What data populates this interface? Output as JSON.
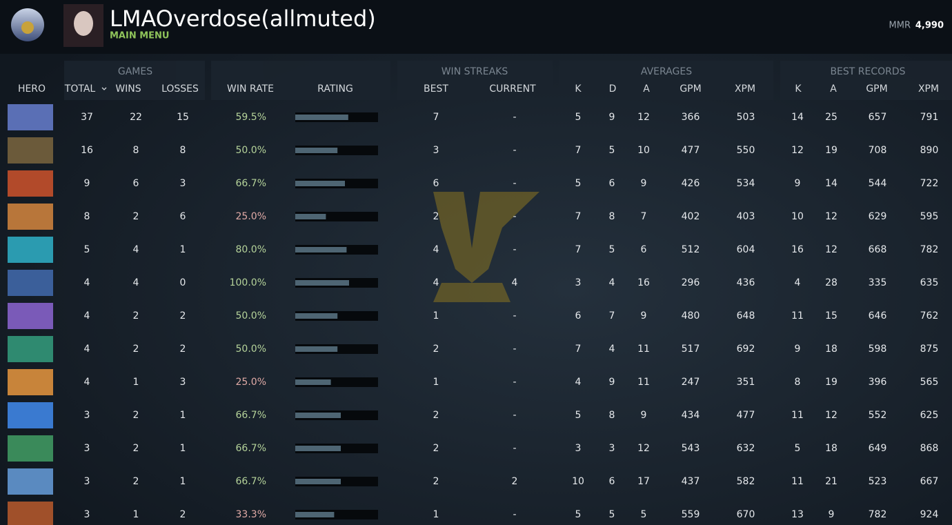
{
  "header": {
    "name": "LMAOverdose(allmuted)",
    "subtitle": "MAIN MENU",
    "mmr_label": "MMR",
    "mmr": "4,990"
  },
  "table": {
    "groups": [
      "GAMES",
      "WIN STREAKS",
      "AVERAGES",
      "BEST RECORDS"
    ],
    "columns": [
      "HERO",
      "TOTAL",
      "WINS",
      "LOSSES",
      "WIN RATE",
      "RATING",
      "BEST",
      "CURRENT",
      "K",
      "D",
      "A",
      "GPM",
      "XPM",
      "K",
      "A",
      "GPM",
      "XPM"
    ],
    "rating_scale": [
      0,
      100
    ],
    "rows": [
      [
        37,
        22,
        15,
        "59.5%",
        64,
        7,
        "-",
        5,
        9,
        12,
        366,
        503,
        14,
        25,
        657,
        791
      ],
      [
        16,
        8,
        8,
        "50.0%",
        51,
        3,
        "-",
        7,
        5,
        10,
        477,
        550,
        12,
        19,
        708,
        890
      ],
      [
        9,
        6,
        3,
        "66.7%",
        60,
        6,
        "-",
        5,
        6,
        9,
        426,
        534,
        9,
        14,
        544,
        722
      ],
      [
        8,
        2,
        6,
        "25.0%",
        37,
        2,
        "-",
        7,
        8,
        7,
        402,
        403,
        10,
        12,
        629,
        595
      ],
      [
        5,
        4,
        1,
        "80.0%",
        62,
        4,
        "-",
        7,
        5,
        6,
        512,
        604,
        16,
        12,
        668,
        782
      ],
      [
        4,
        4,
        0,
        "100.0%",
        65,
        4,
        4,
        3,
        4,
        16,
        296,
        436,
        4,
        28,
        335,
        635
      ],
      [
        4,
        2,
        2,
        "50.0%",
        51,
        1,
        "-",
        6,
        7,
        9,
        480,
        648,
        11,
        15,
        646,
        762
      ],
      [
        4,
        2,
        2,
        "50.0%",
        51,
        2,
        "-",
        7,
        4,
        11,
        517,
        692,
        9,
        18,
        598,
        875
      ],
      [
        4,
        1,
        3,
        "25.0%",
        43,
        1,
        "-",
        4,
        9,
        11,
        247,
        351,
        8,
        19,
        396,
        565
      ],
      [
        3,
        2,
        1,
        "66.7%",
        55,
        2,
        "-",
        5,
        8,
        9,
        434,
        477,
        11,
        12,
        552,
        625
      ],
      [
        3,
        2,
        1,
        "66.7%",
        55,
        2,
        "-",
        3,
        3,
        12,
        543,
        632,
        5,
        18,
        649,
        868
      ],
      [
        3,
        2,
        1,
        "66.7%",
        55,
        2,
        2,
        10,
        6,
        17,
        437,
        582,
        11,
        21,
        523,
        667
      ],
      [
        3,
        1,
        2,
        "33.3%",
        47,
        1,
        "-",
        5,
        5,
        5,
        559,
        670,
        13,
        9,
        782,
        924
      ]
    ]
  }
}
